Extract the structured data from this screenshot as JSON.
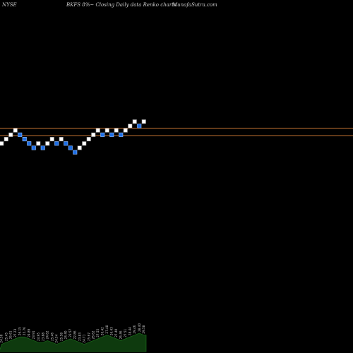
{
  "header": {
    "exchange": "NYSE",
    "title": "BKFS 8%~ Closing Daily data Renko charts",
    "site": "MunafaSutra.com"
  },
  "colors": {
    "background": "#000000",
    "up_brick": "#ffffff",
    "down_brick": "#1e6fe6",
    "down_brick_edge": "#9cc4ff",
    "ref_line": "#c87533",
    "volume": "#0e3a0e",
    "volume_edge": "#1f7a1f",
    "label_text": "#d0d0d0"
  },
  "chart_data": {
    "type": "renko",
    "bricks": [
      {
        "level": 0,
        "dir": "up"
      },
      {
        "level": 1,
        "dir": "up"
      },
      {
        "level": 2,
        "dir": "up"
      },
      {
        "level": 3,
        "dir": "up"
      },
      {
        "level": 2,
        "dir": "down"
      },
      {
        "level": 1,
        "dir": "down"
      },
      {
        "level": 0,
        "dir": "down"
      },
      {
        "level": -1,
        "dir": "down"
      },
      {
        "level": 0,
        "dir": "up"
      },
      {
        "level": -1,
        "dir": "down"
      },
      {
        "level": 0,
        "dir": "up"
      },
      {
        "level": 1,
        "dir": "up"
      },
      {
        "level": 0,
        "dir": "down"
      },
      {
        "level": 1,
        "dir": "up"
      },
      {
        "level": 0,
        "dir": "down"
      },
      {
        "level": -1,
        "dir": "down"
      },
      {
        "level": -2,
        "dir": "down"
      },
      {
        "level": -1,
        "dir": "up"
      },
      {
        "level": 0,
        "dir": "up"
      },
      {
        "level": 1,
        "dir": "up"
      },
      {
        "level": 2,
        "dir": "up"
      },
      {
        "level": 3,
        "dir": "up"
      },
      {
        "level": 2,
        "dir": "down"
      },
      {
        "level": 3,
        "dir": "up"
      },
      {
        "level": 2,
        "dir": "down"
      },
      {
        "level": 3,
        "dir": "up"
      },
      {
        "level": 2,
        "dir": "down"
      },
      {
        "level": 3,
        "dir": "up"
      },
      {
        "level": 4,
        "dir": "up"
      },
      {
        "level": 5,
        "dir": "up"
      },
      {
        "level": 4,
        "dir": "down"
      },
      {
        "level": 5,
        "dir": "up"
      }
    ],
    "reference_lines": [
      {
        "level": 3.5
      },
      {
        "level": 1.8
      }
    ],
    "volume": [
      4,
      5,
      6,
      7,
      8,
      8,
      7,
      6,
      5,
      5,
      6,
      5,
      4,
      5,
      6,
      7,
      6,
      5,
      4,
      5,
      6,
      7,
      8,
      9,
      8,
      7,
      6,
      7,
      8,
      9,
      10,
      9
    ],
    "brick_labels": [
      "24.50",
      "25.45",
      "26.61",
      "27.23",
      "26.15",
      "25.76",
      "24.89",
      "23.91",
      "24.95",
      "23.88",
      "24.62",
      "25.46",
      "24.54",
      "25.58",
      "24.40",
      "23.57",
      "22.86",
      "23.83",
      "24.71",
      "25.67",
      "26.62",
      "27.55",
      "26.42",
      "27.48",
      "26.43",
      "27.40",
      "26.46",
      "27.51",
      "28.44",
      "29.46",
      "28.40",
      "29.58"
    ]
  }
}
